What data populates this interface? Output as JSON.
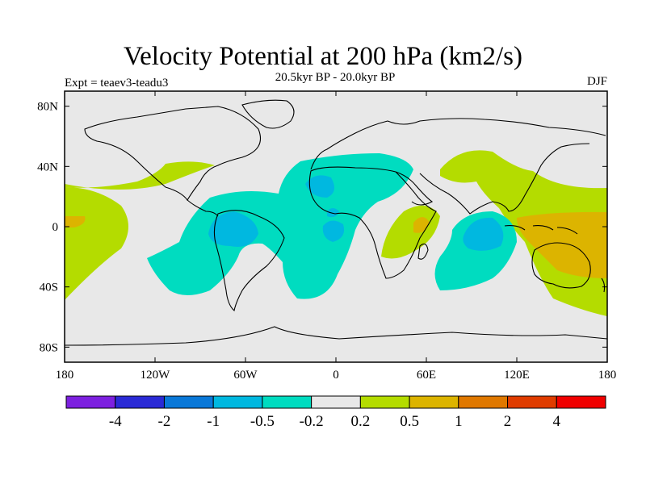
{
  "header": {
    "title": "Velocity Potential at 200 hPa (km2/s)",
    "subtitle": "20.5kyr BP - 20.0kyr BP",
    "left_label": "Expt = teaev3-teadu3",
    "right_label": "DJF"
  },
  "map": {
    "projection": "cylindrical-equidistant",
    "lon_range": [
      -180,
      180
    ],
    "lat_range": [
      -90,
      90
    ],
    "lon_ticks": [
      {
        "value": -180,
        "label": "180"
      },
      {
        "value": -120,
        "label": "120W"
      },
      {
        "value": -60,
        "label": "60W"
      },
      {
        "value": 0,
        "label": "0"
      },
      {
        "value": 60,
        "label": "60E"
      },
      {
        "value": 120,
        "label": "120E"
      },
      {
        "value": 180,
        "label": "180"
      }
    ],
    "lat_ticks": [
      {
        "value": 80,
        "label": "80N"
      },
      {
        "value": 40,
        "label": "40N"
      },
      {
        "value": 0,
        "label": "0"
      },
      {
        "value": -40,
        "label": "40S"
      },
      {
        "value": -80,
        "label": "80S"
      }
    ],
    "background_color": "#e8e8e8"
  },
  "colorbar": {
    "colors": [
      "#7d20e0",
      "#2a2ad6",
      "#0a78d8",
      "#00b8e0",
      "#00dcc0",
      "#e8e8e8",
      "#b4dc00",
      "#dcb400",
      "#e07800",
      "#e03c00",
      "#f00000"
    ],
    "labels": [
      "-4",
      "-2",
      "-1",
      "-0.5",
      "-0.2",
      "0.2",
      "0.5",
      "1",
      "2",
      "4"
    ]
  }
}
